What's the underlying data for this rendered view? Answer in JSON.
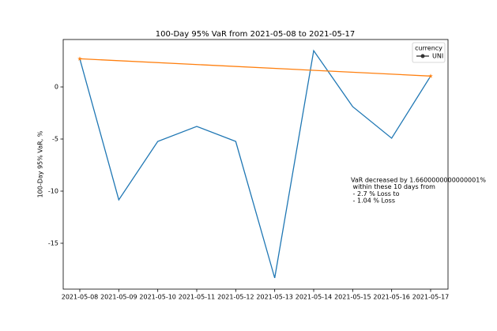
{
  "chart_data": {
    "type": "line",
    "title": "100-Day 95% VaR from 2021-05-08 to 2021-05-17",
    "y_label": "100-Day 95% VaR, %",
    "categories": [
      "2021-05-08",
      "2021-05-09",
      "2021-05-10",
      "2021-05-11",
      "2021-05-12",
      "2021-05-13",
      "2021-05-14",
      "2021-05-15",
      "2021-05-16",
      "2021-05-17"
    ],
    "series": [
      {
        "name": "UNI",
        "color": "#1f77b4",
        "values": [
          2.7,
          -10.83,
          -5.23,
          -3.79,
          -5.23,
          -18.33,
          3.48,
          -1.89,
          -4.92,
          1.04
        ]
      },
      {
        "color": "#ff7f0e",
        "marker": "star",
        "x": [
          "2021-05-08",
          "2021-05-17"
        ],
        "values": [
          2.7,
          1.04
        ]
      }
    ],
    "ylim": [
      -19.4,
      4.55
    ],
    "yticks": [
      0,
      -5,
      -10,
      -15
    ],
    "legend_title": "currency",
    "legend": "upper right",
    "annotation": [
      "VaR decreased by 1.6600000000000001%",
      " within these 10 days from",
      " - 2.7 % Loss to",
      " - 1.04 % Loss"
    ]
  }
}
